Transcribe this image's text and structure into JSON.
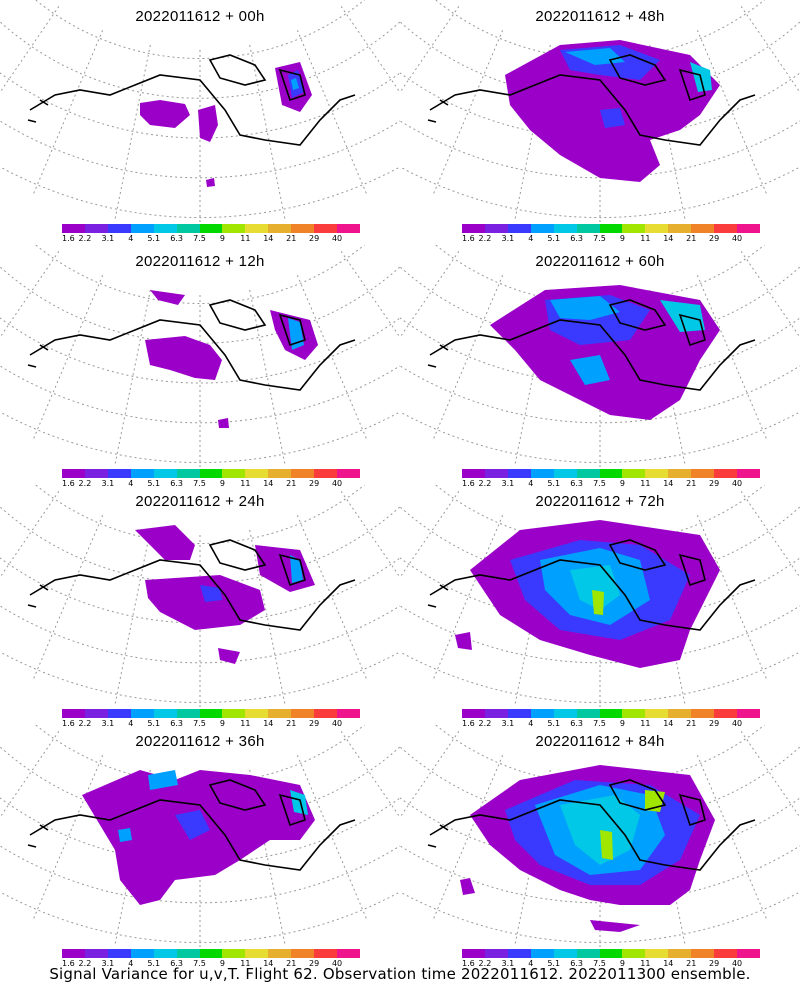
{
  "panels": [
    {
      "title": "2022011612 + 00h",
      "blob_set": "b00"
    },
    {
      "title": "2022011612 + 48h",
      "blob_set": "b48"
    },
    {
      "title": "2022011612 + 12h",
      "blob_set": "b12"
    },
    {
      "title": "2022011612 + 60h",
      "blob_set": "b60"
    },
    {
      "title": "2022011612 + 24h",
      "blob_set": "b24"
    },
    {
      "title": "2022011612 + 72h",
      "blob_set": "b72"
    },
    {
      "title": "2022011612 + 36h",
      "blob_set": "b36"
    },
    {
      "title": "2022011612 + 84h",
      "blob_set": "b84"
    }
  ],
  "colorbar": {
    "labels": [
      "1.6",
      "2.2",
      "3.1",
      "4",
      "5.1",
      "6.3",
      "7.5",
      "9",
      "11",
      "14",
      "21",
      "29",
      "40"
    ],
    "colors": [
      "#9b00c8",
      "#7a20e0",
      "#3a3aff",
      "#00a0ff",
      "#00c8e6",
      "#00c8a0",
      "#00d800",
      "#a0e600",
      "#e6dc32",
      "#e6af2d",
      "#f08228",
      "#fa3c3c",
      "#f0148c"
    ]
  },
  "caption": "Signal Variance for u,v,T. Flight 62. Observation time 2022011612. 2022011300 ensemble."
}
